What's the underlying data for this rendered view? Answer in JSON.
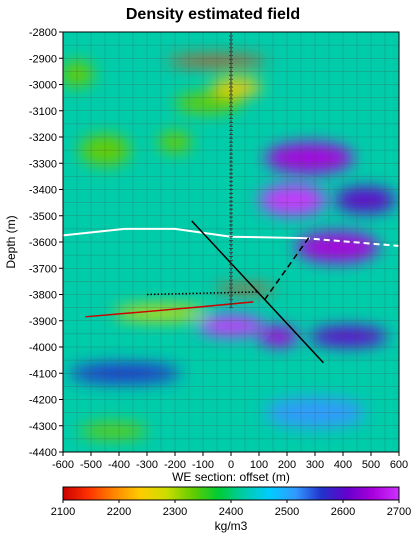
{
  "chart_data": {
    "type": "heatmap",
    "title": "Density estimated field",
    "xlabel": "WE section: offset (m)",
    "ylabel": "Depth (m)",
    "xlim": [
      -600,
      600
    ],
    "ylim": [
      -4400,
      -2800
    ],
    "x_ticks": [
      "-600",
      "-500",
      "-400",
      "-300",
      "-200",
      "-100",
      "0",
      "100",
      "200",
      "300",
      "400",
      "500",
      "600"
    ],
    "y_ticks": [
      "-2800",
      "-2900",
      "-3000",
      "-3100",
      "-3200",
      "-3300",
      "-3400",
      "-3500",
      "-3600",
      "-3700",
      "-3800",
      "-3900",
      "-4000",
      "-4100",
      "-4200",
      "-4300",
      "-4400"
    ],
    "colorbar": {
      "label": "kg/m3",
      "min": 2100,
      "max": 2700,
      "ticks": [
        "2100",
        "2200",
        "2300",
        "2400",
        "2500",
        "2600",
        "2700"
      ],
      "colors": [
        "#cc0000",
        "#ff3300",
        "#ff8800",
        "#ffcc00",
        "#ccdd00",
        "#66cc00",
        "#00cc33",
        "#00ccaa",
        "#00ccff",
        "#3399ff",
        "#2233cc",
        "#6600cc",
        "#aa00dd",
        "#cc33ff"
      ]
    },
    "grid": true,
    "anomalies": [
      {
        "x": -50,
        "y": -2910,
        "rx": 180,
        "ry": 18,
        "value": 2150
      },
      {
        "x": 20,
        "y": -3010,
        "rx": 90,
        "ry": 35,
        "value": 2250
      },
      {
        "x": -80,
        "y": -3070,
        "rx": 120,
        "ry": 40,
        "value": 2330
      },
      {
        "x": -550,
        "y": -2960,
        "rx": 60,
        "ry": 50,
        "value": 2330
      },
      {
        "x": -450,
        "y": -3250,
        "rx": 90,
        "ry": 60,
        "value": 2340
      },
      {
        "x": -200,
        "y": -3220,
        "rx": 60,
        "ry": 40,
        "value": 2330
      },
      {
        "x": 280,
        "y": -3280,
        "rx": 160,
        "ry": 60,
        "value": 2670
      },
      {
        "x": 220,
        "y": -3440,
        "rx": 120,
        "ry": 60,
        "value": 2690
      },
      {
        "x": 480,
        "y": -3440,
        "rx": 110,
        "ry": 50,
        "value": 2620
      },
      {
        "x": 380,
        "y": -3620,
        "rx": 150,
        "ry": 60,
        "value": 2650
      },
      {
        "x": 50,
        "y": -3780,
        "rx": 110,
        "ry": 14,
        "value": 2140
      },
      {
        "x": -250,
        "y": -3870,
        "rx": 170,
        "ry": 30,
        "value": 2300
      },
      {
        "x": 0,
        "y": -3920,
        "rx": 120,
        "ry": 40,
        "value": 2680
      },
      {
        "x": 170,
        "y": -3960,
        "rx": 70,
        "ry": 40,
        "value": 2640
      },
      {
        "x": 420,
        "y": -3960,
        "rx": 140,
        "ry": 40,
        "value": 2600
      },
      {
        "x": -380,
        "y": -4100,
        "rx": 200,
        "ry": 40,
        "value": 2560
      },
      {
        "x": -420,
        "y": -4320,
        "rx": 120,
        "ry": 30,
        "value": 2330
      },
      {
        "x": 300,
        "y": -4250,
        "rx": 180,
        "ry": 60,
        "value": 2520
      }
    ],
    "overlays": [
      {
        "name": "white-horizon",
        "color": "#ffffff",
        "dash": "solid",
        "width": 2,
        "points": [
          [
            -600,
            -3575
          ],
          [
            -380,
            -3550
          ],
          [
            -200,
            -3550
          ],
          [
            0,
            -3580
          ],
          [
            260,
            -3585
          ]
        ]
      },
      {
        "name": "white-horizon-dashed",
        "color": "#ffffff",
        "dash": "dashed",
        "width": 2,
        "points": [
          [
            260,
            -3585
          ],
          [
            430,
            -3600
          ],
          [
            600,
            -3615
          ]
        ]
      },
      {
        "name": "red-horizon",
        "color": "#cc0000",
        "dash": "solid",
        "width": 1.5,
        "points": [
          [
            -520,
            -3885
          ],
          [
            -300,
            -3865
          ],
          [
            -120,
            -3848
          ],
          [
            80,
            -3828
          ]
        ]
      },
      {
        "name": "black-dotted",
        "color": "#000000",
        "dash": "dotted",
        "width": 1.5,
        "points": [
          [
            -300,
            -3800
          ],
          [
            -100,
            -3795
          ],
          [
            100,
            -3790
          ]
        ]
      },
      {
        "name": "black-fault",
        "color": "#000000",
        "dash": "solid",
        "width": 1.5,
        "points": [
          [
            -140,
            -3520
          ],
          [
            330,
            -4060
          ]
        ]
      },
      {
        "name": "black-fault-dashed",
        "color": "#000000",
        "dash": "dashed",
        "width": 1.5,
        "points": [
          [
            120,
            -3820
          ],
          [
            280,
            -3580
          ]
        ]
      },
      {
        "name": "borehole",
        "color": "#333333",
        "dash": "ticks",
        "width": 1,
        "points": [
          [
            0,
            -2800
          ],
          [
            0,
            -3850
          ]
        ]
      }
    ]
  }
}
